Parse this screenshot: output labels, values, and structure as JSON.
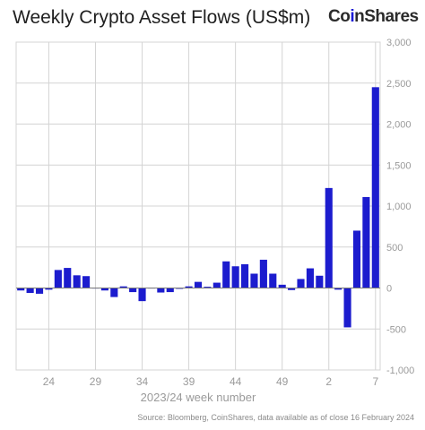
{
  "header": {
    "title": "Weekly Crypto Asset Flows (US$m)",
    "brand_prefix": "Co",
    "brand_accent": "i",
    "brand_suffix": "nShares"
  },
  "footer": {
    "source": "Source: Bloomberg, CoinShares, data available as of close 16 February 2024"
  },
  "colors": {
    "bar": "#1c1cce",
    "grid": "#d4d4d4",
    "axis_text": "#9a9a9a",
    "brand_accent": "#1a1ad6"
  },
  "chart_data": {
    "type": "bar",
    "title": "Weekly Crypto Asset Flows (US$m)",
    "xlabel": "2023/24 week number",
    "ylabel": "",
    "ylim": [
      -1000,
      3000
    ],
    "y_ticks": [
      -1000,
      -500,
      0,
      500,
      1000,
      1500,
      2000,
      2500,
      3000
    ],
    "y_tick_labels": [
      "-1,000",
      "-500",
      "0",
      "500",
      "1,000",
      "1,500",
      "2,000",
      "2,500",
      "3,000"
    ],
    "x_tick_labels": [
      "24",
      "29",
      "34",
      "39",
      "44",
      "49",
      "2",
      "7"
    ],
    "x_tick_positions": [
      "24",
      "29",
      "34",
      "39",
      "44",
      "49",
      "2",
      "7"
    ],
    "grid": "vertical and horizontal",
    "categories": [
      "21",
      "22",
      "23",
      "24",
      "25",
      "26",
      "27",
      "28",
      "29",
      "30",
      "31",
      "32",
      "33",
      "34",
      "35",
      "36",
      "37",
      "38",
      "39",
      "40",
      "41",
      "42",
      "43",
      "44",
      "45",
      "46",
      "47",
      "48",
      "49",
      "50",
      "51",
      "52",
      "1",
      "2",
      "3",
      "4",
      "5",
      "6",
      "7"
    ],
    "values": [
      -30,
      -60,
      -70,
      -20,
      220,
      245,
      155,
      145,
      0,
      -30,
      -110,
      20,
      -50,
      -160,
      0,
      -55,
      -50,
      -10,
      20,
      75,
      15,
      65,
      325,
      265,
      290,
      175,
      345,
      175,
      40,
      -25,
      110,
      240,
      150,
      1220,
      -20,
      -480,
      700,
      1110,
      2450
    ]
  }
}
